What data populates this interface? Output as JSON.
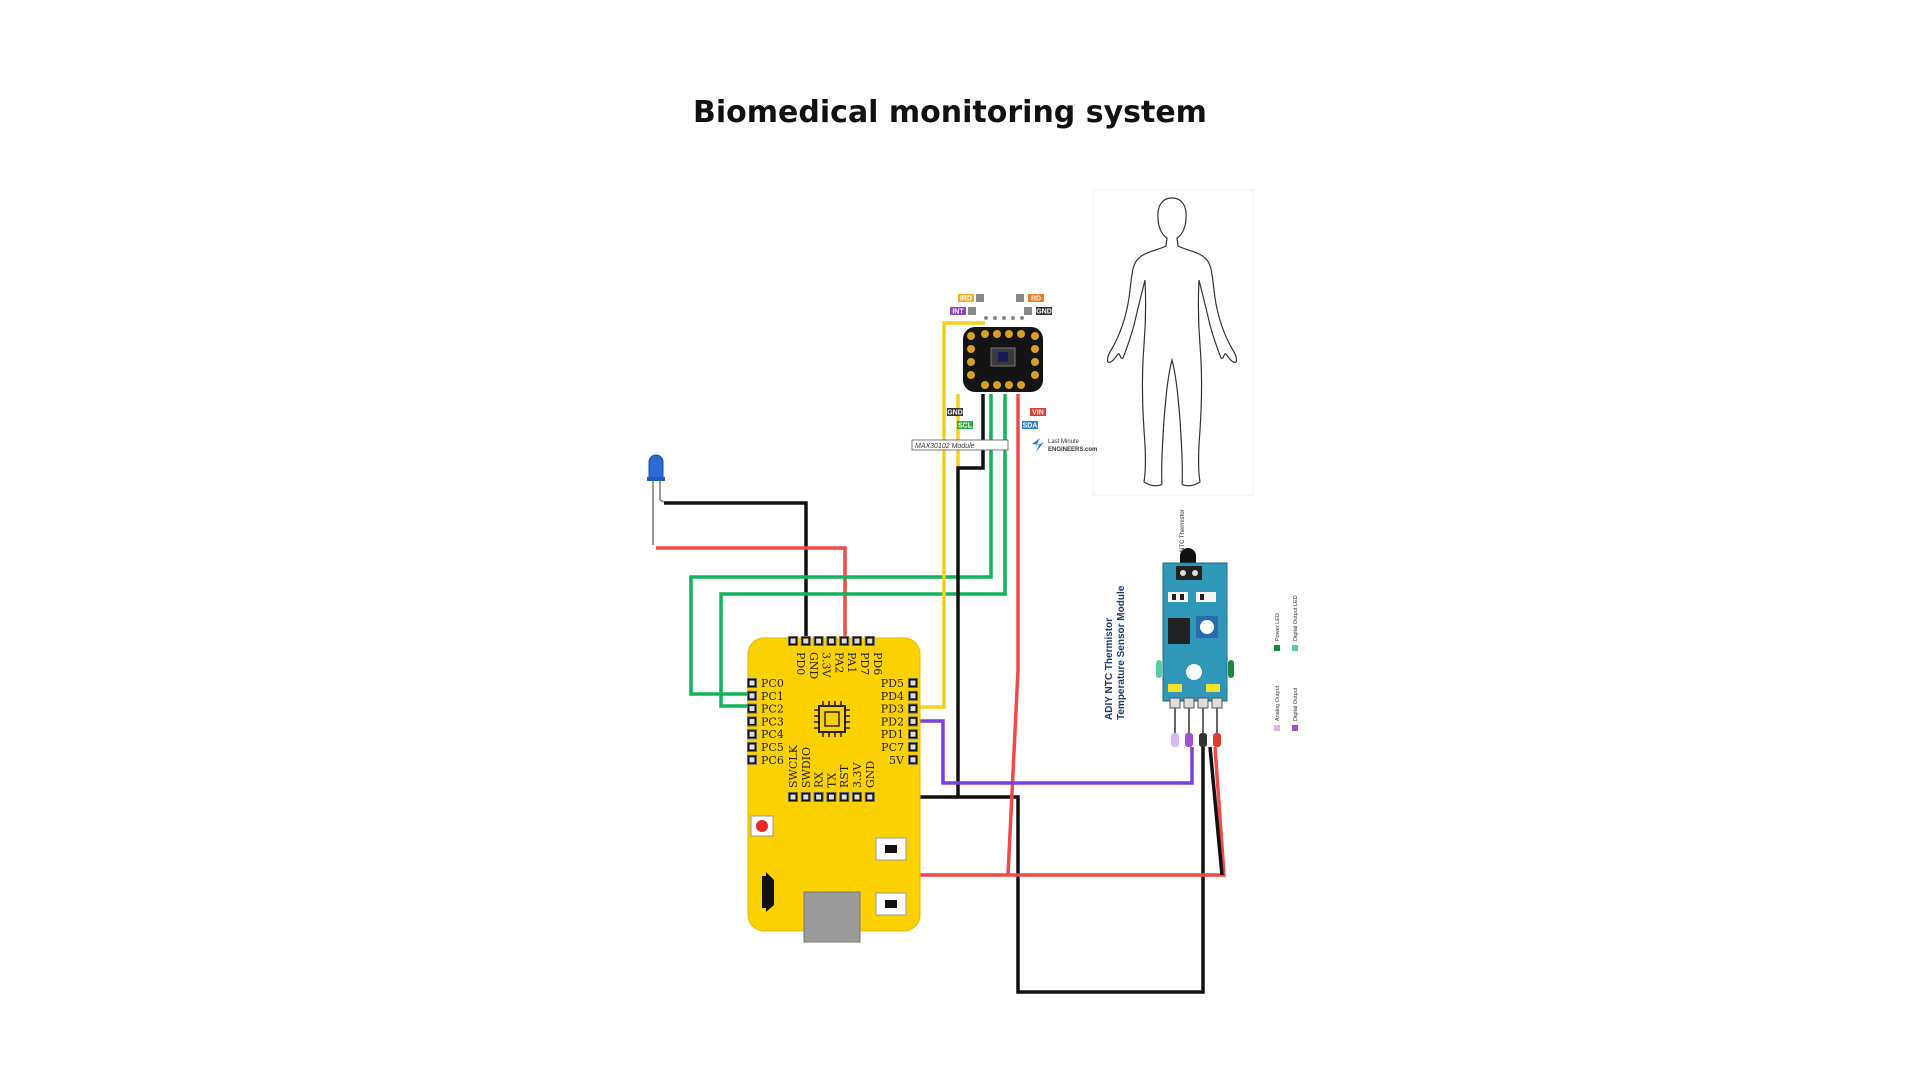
{
  "title": "Biomedical monitoring system",
  "board": {
    "top_pins": [
      "PD0",
      "GND",
      "3.3V",
      "PA2",
      "PA1",
      "PD7",
      "PD6"
    ],
    "left_pins": [
      "PC0",
      "PC1",
      "PC2",
      "PC3",
      "PC4",
      "PC5",
      "PC6"
    ],
    "right_pins": [
      "PD5",
      "PD4",
      "PD3",
      "PD2",
      "PD1",
      "PC7",
      "5V"
    ],
    "bottom_pins": [
      "SWCLK",
      "SWDIO",
      "RX",
      "TX",
      "RST",
      "3.3V",
      "GND"
    ]
  },
  "max30102": {
    "top_tags": [
      {
        "text": "IRD",
        "color": "#f0b020"
      },
      {
        "text": "INT",
        "color": "#8b44c4"
      },
      {
        "text": "RD",
        "color": "#f07a20"
      },
      {
        "text": "GND",
        "color": "#333333"
      }
    ],
    "bottom_tags": [
      {
        "text": "GND",
        "color": "#333333"
      },
      {
        "text": "SCL",
        "color": "#2bb04a"
      },
      {
        "text": "VIN",
        "color": "#e03a2f"
      },
      {
        "text": "SDA",
        "color": "#2a7ed8"
      }
    ],
    "module_label": "MAX30102 Module",
    "brand_top": "Last Minute",
    "brand_bottom": "ENGINEERS.com"
  },
  "thermistor": {
    "module_title_1": "ADIY NTC Thermistor",
    "module_title_2": "Temperature Sensor Module",
    "probe_label": "NTC Thermistor",
    "legend": [
      "Power LED",
      "Digital Output LED",
      "Analog Output",
      "Digital Output"
    ],
    "legend_colors": [
      "#1a8a3a",
      "#57d0a0",
      "#d9b8ee",
      "#a050d0"
    ]
  },
  "wire_colors": {
    "black": "#111111",
    "red": "#ef4b48",
    "green": "#10b45a",
    "yellow": "#f5d020",
    "purple": "#7b3fe4"
  }
}
